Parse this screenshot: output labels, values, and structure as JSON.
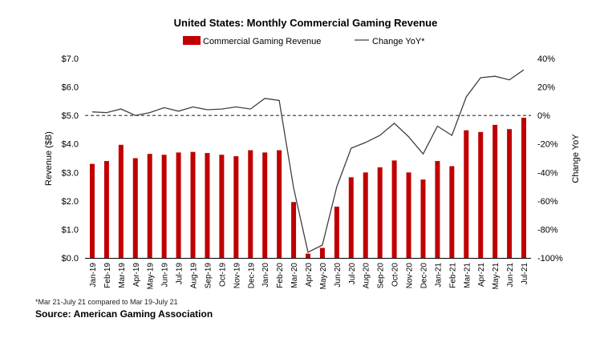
{
  "chart_data": {
    "type": "bar",
    "title": "United States: Monthly Commercial Gaming Revenue",
    "categories": [
      "Jan-19",
      "Feb-19",
      "Mar-19",
      "Apr-19",
      "May-19",
      "Jun-19",
      "Jul-19",
      "Aug-19",
      "Sep-19",
      "Oct-19",
      "Nov-19",
      "Dec-19",
      "Jan-20",
      "Feb-20",
      "Mar-20",
      "Apr-20",
      "May-20",
      "Jun-20",
      "Jul-20",
      "Aug-20",
      "Sep-20",
      "Oct-20",
      "Nov-20",
      "Dec-20",
      "Jan-21",
      "Feb-21",
      "Mar-21",
      "Apr-21",
      "May-21",
      "Jun-21",
      "Jul-21"
    ],
    "series": [
      {
        "name": "Commercial Gaming Revenue",
        "type": "bar",
        "axis": "left",
        "color": "#c00000",
        "values": [
          3.3,
          3.4,
          3.97,
          3.5,
          3.65,
          3.62,
          3.7,
          3.72,
          3.68,
          3.62,
          3.57,
          3.78,
          3.7,
          3.78,
          1.96,
          0.15,
          0.35,
          1.8,
          2.83,
          3.0,
          3.18,
          3.42,
          3.0,
          2.75,
          3.4,
          3.22,
          4.48,
          4.42,
          4.67,
          4.52,
          4.92
        ]
      },
      {
        "name": "Change YoY*",
        "type": "line",
        "axis": "right",
        "color": "#404040",
        "values": [
          2.5,
          2,
          4.5,
          0,
          2,
          5.5,
          3,
          6,
          4,
          4.5,
          6,
          4.5,
          12,
          10.5,
          -51,
          -96,
          -91,
          -50,
          -23,
          -19,
          -14,
          -5.5,
          -15,
          -27,
          -7.5,
          -14,
          13,
          26.5,
          27.5,
          25,
          32
        ]
      }
    ],
    "ylabel": "Revenue ($B)",
    "ylabel_right": "Change YoY",
    "ylim": [
      0,
      7
    ],
    "ylim_right": [
      -100,
      40
    ],
    "yticks": [
      "$0.0",
      "$1.0",
      "$2.0",
      "$3.0",
      "$4.0",
      "$5.0",
      "$6.0",
      "$7.0"
    ],
    "yticks_right": [
      "-100%",
      "-80%",
      "-60%",
      "-40%",
      "-20%",
      "0%",
      "20%",
      "40%"
    ],
    "reference_line": {
      "axis": "right",
      "value": 0,
      "style": "dashed"
    },
    "legend": {
      "position": "top-center",
      "entries": [
        "Commercial Gaming Revenue",
        "Change YoY*"
      ]
    },
    "grid": false
  },
  "footnote": "*Mar 21-July 21 compared to Mar 19-July 21",
  "source": "Source: American Gaming Association"
}
